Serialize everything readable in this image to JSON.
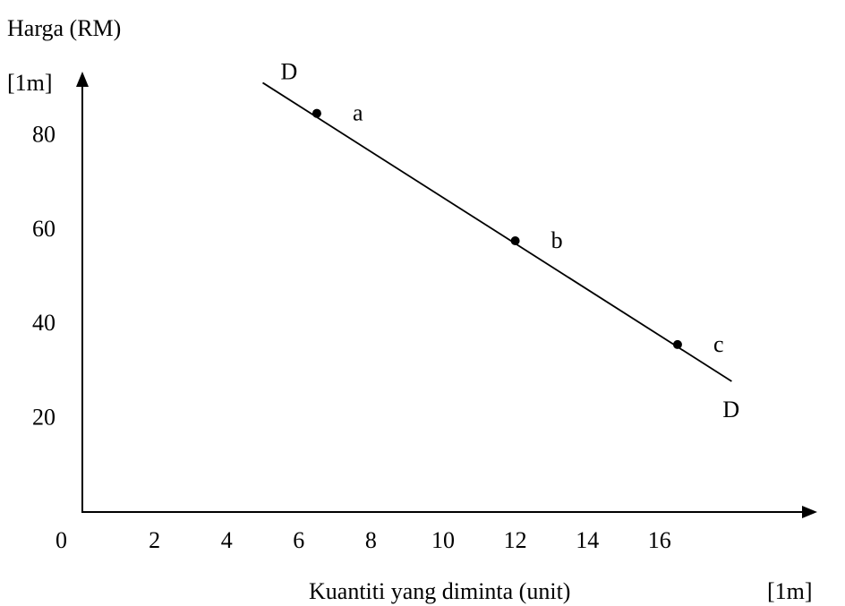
{
  "chart_data": {
    "type": "line",
    "ylabel": "Harga (RM)",
    "xlabel": "Kuantiti yang diminta (unit)",
    "y_mark": "[1m]",
    "x_mark": "[1m]",
    "origin_label": "0",
    "x_ticks": [
      "2",
      "4",
      "6",
      "8",
      "10",
      "12",
      "14",
      "16"
    ],
    "y_ticks": [
      "20",
      "40",
      "60",
      "80"
    ],
    "series": [
      {
        "name": "D",
        "end_labels": [
          "D",
          "D"
        ],
        "line": [
          [
            5.0,
            91.0
          ],
          [
            18.0,
            27.7
          ]
        ]
      }
    ],
    "points": [
      {
        "label": "a",
        "x": 6.5,
        "y": 84.5
      },
      {
        "label": "b",
        "x": 12.0,
        "y": 57.5
      },
      {
        "label": "c",
        "x": 16.5,
        "y": 35.5
      }
    ],
    "xlim": [
      0,
      18
    ],
    "ylim": [
      0,
      95
    ]
  }
}
